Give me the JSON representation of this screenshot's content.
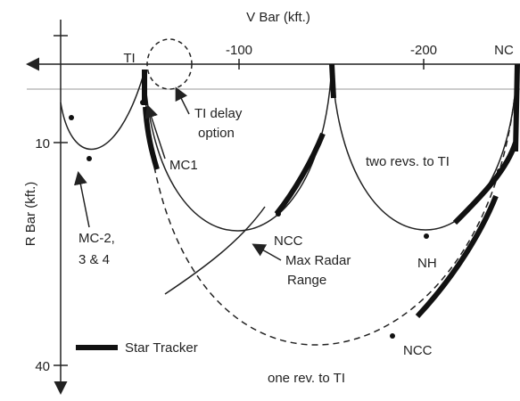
{
  "axes": {
    "x_label": "V Bar (kft.)",
    "y_label": "R Bar (kft.)",
    "x_ticks": [
      "-100",
      "-200"
    ],
    "y_ticks": [
      "10",
      "40"
    ]
  },
  "labels": {
    "nc": "NC",
    "ti": "TI",
    "ti_delay": [
      "TI delay",
      "option"
    ],
    "mc1": "MC1",
    "two_revs": "two revs. to TI",
    "mc234": [
      "MC-2,",
      "3 & 4"
    ],
    "ncc_upper": "NCC",
    "nh": "NH",
    "max_radar": [
      "Max Radar",
      "Range"
    ],
    "star_tracker": "Star Tracker",
    "ncc_lower": "NCC",
    "one_rev": "one rev. to TI"
  }
}
